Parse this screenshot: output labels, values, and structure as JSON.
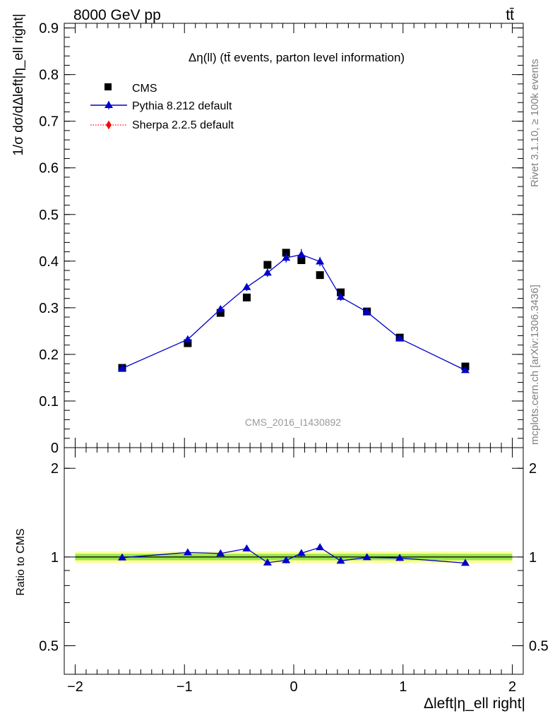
{
  "header": {
    "energy_label": "8000 GeV pp",
    "process_label": "tt̄"
  },
  "side_text": {
    "rivet": "Rivet 3.1.10, ≥ 100k events",
    "mcplots": "mcplots.cern.ch [arXiv:1306.3436]"
  },
  "chart_data": [
    {
      "panel": "main",
      "type": "scatter",
      "title": "Δη(ll) (tt̄ events, parton level information)",
      "ylabel": "1/σ dσ/dΔleft|η_ell right|",
      "xlabel": "",
      "xlim": [
        -2.1,
        2.1
      ],
      "ylim": [
        0,
        0.91
      ],
      "log_y": false,
      "grid": false,
      "legend_position": "top-left",
      "watermark": "CMS_2016_I1430892",
      "yticks": [
        0,
        0.1,
        0.2,
        0.3,
        0.4,
        0.5,
        0.6,
        0.7,
        0.8,
        0.9
      ],
      "ytick_labels": [
        "0",
        "0.1",
        "0.2",
        "0.3",
        "0.4",
        "0.5",
        "0.6",
        "0.7",
        "0.8",
        "0.9"
      ],
      "series": [
        {
          "name": "CMS",
          "style": "markers",
          "marker": "square",
          "color": "#000000",
          "x": [
            -1.57,
            -0.97,
            -0.67,
            -0.43,
            -0.24,
            -0.07,
            0.07,
            0.24,
            0.43,
            0.67,
            0.97,
            1.57
          ],
          "y": [
            0.171,
            0.224,
            0.289,
            0.322,
            0.392,
            0.418,
            0.402,
            0.37,
            0.333,
            0.292,
            0.236,
            0.174
          ]
        },
        {
          "name": "Pythia 8.212 default",
          "style": "line+markers",
          "marker": "triangle",
          "color": "#0000cc",
          "x": [
            -1.57,
            -0.97,
            -0.67,
            -0.43,
            -0.24,
            -0.07,
            0.07,
            0.24,
            0.43,
            0.67,
            0.97,
            1.57
          ],
          "y": [
            0.17,
            0.232,
            0.297,
            0.344,
            0.375,
            0.407,
            0.414,
            0.399,
            0.323,
            0.291,
            0.234,
            0.166
          ],
          "err": [
            0.004,
            0.006,
            0.007,
            0.008,
            0.009,
            0.01,
            0.012,
            0.01,
            0.008,
            0.007,
            0.005,
            0.004
          ]
        },
        {
          "name": "Sherpa 2.2.5 default",
          "style": "dotted",
          "marker": "diamond",
          "color": "#ff0000",
          "x": [],
          "y": []
        }
      ]
    },
    {
      "panel": "ratio",
      "type": "scatter",
      "ylabel": "Ratio to CMS",
      "xlabel": "Δleft|η_ell right|",
      "xlim": [
        -2.1,
        2.1
      ],
      "ylim": [
        0.4,
        2.35
      ],
      "log_y": true,
      "grid": false,
      "yticks": [
        0.5,
        1,
        2
      ],
      "ytick_labels": [
        "0.5",
        "1",
        "2"
      ],
      "xticks": [
        -2,
        -1,
        0,
        1,
        2
      ],
      "xtick_labels": [
        "−2",
        "−1",
        "0",
        "1",
        "2"
      ],
      "band": {
        "inner": [
          0.975,
          1.025
        ],
        "outer": [
          0.955,
          1.045
        ],
        "inner_color": "#99e64d",
        "outer_color": "#ffff99",
        "xrange": [
          -2.0,
          2.0
        ]
      },
      "series": [
        {
          "name": "Pythia 8.212 default",
          "style": "line+markers",
          "marker": "triangle",
          "color": "#0000cc",
          "x": [
            -1.57,
            -0.97,
            -0.67,
            -0.43,
            -0.24,
            -0.07,
            0.07,
            0.24,
            0.43,
            0.67,
            0.97,
            1.57
          ],
          "y": [
            0.995,
            1.036,
            1.028,
            1.068,
            0.957,
            0.974,
            1.03,
            1.078,
            0.97,
            0.997,
            0.992,
            0.954
          ],
          "err": [
            0.01,
            0.02,
            0.018,
            0.02,
            0.02,
            0.022,
            0.025,
            0.022,
            0.018,
            0.018,
            0.016,
            0.012
          ]
        }
      ]
    }
  ]
}
